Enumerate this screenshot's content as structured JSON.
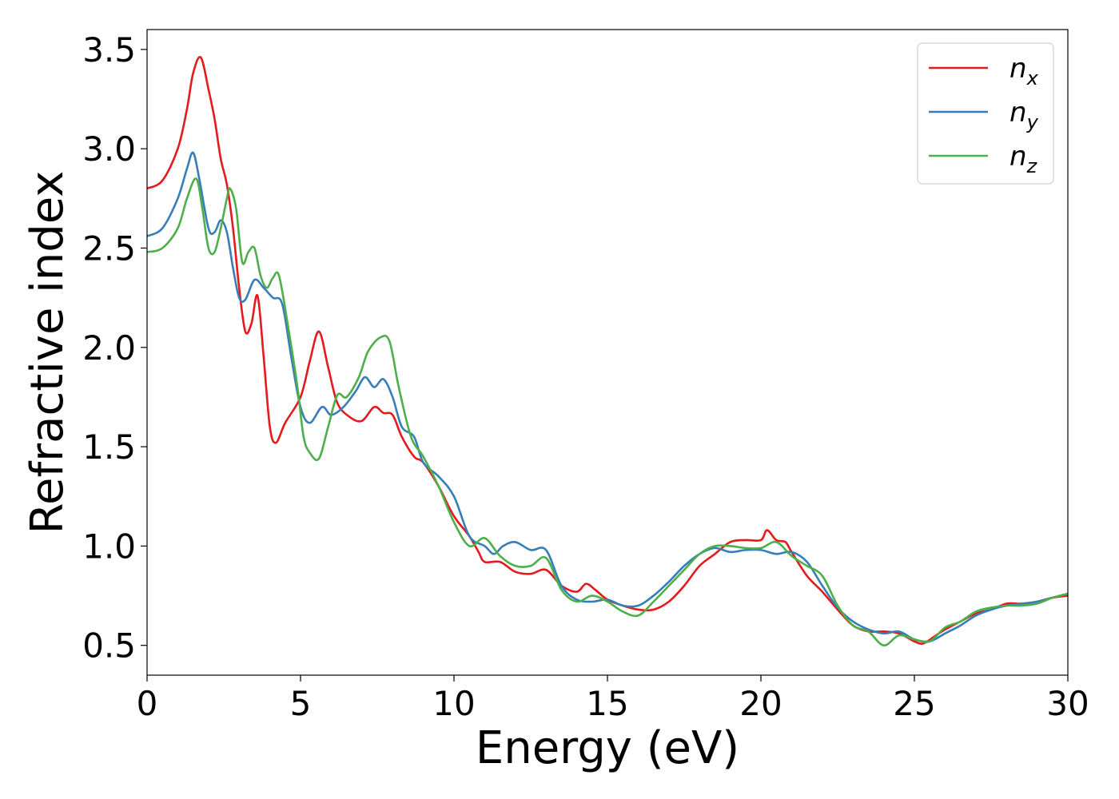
{
  "chart_data": {
    "type": "line",
    "title": "",
    "xlabel": "Energy (eV)",
    "ylabel": "Refractive index",
    "xlim": [
      0,
      30
    ],
    "ylim": [
      0.35,
      3.6
    ],
    "xticks": [
      0,
      5,
      10,
      15,
      20,
      25,
      30
    ],
    "xtick_labels": [
      "0",
      "5",
      "10",
      "15",
      "20",
      "25",
      "30"
    ],
    "yticks": [
      0.5,
      1.0,
      1.5,
      2.0,
      2.5,
      3.0,
      3.5
    ],
    "ytick_labels": [
      "0.5",
      "1.0",
      "1.5",
      "2.0",
      "2.5",
      "3.0",
      "3.5"
    ],
    "grid": false,
    "legend": "top-right",
    "series": [
      {
        "name": "n",
        "subscript": "x",
        "color": "#e41a1c",
        "x": [
          0,
          0.5,
          1.0,
          1.3,
          1.5,
          1.75,
          2.0,
          2.2,
          2.4,
          2.6,
          2.8,
          3.0,
          3.2,
          3.4,
          3.6,
          3.8,
          4.0,
          4.2,
          4.5,
          5.0,
          5.3,
          5.6,
          5.9,
          6.2,
          6.6,
          7.0,
          7.4,
          7.7,
          8.0,
          8.3,
          8.7,
          9.0,
          9.5,
          10.0,
          10.5,
          10.8,
          11.0,
          11.5,
          12.0,
          12.5,
          13.0,
          13.5,
          14.0,
          14.3,
          14.6,
          15.0,
          15.5,
          16.0,
          16.5,
          17.0,
          17.5,
          18.0,
          18.5,
          19.0,
          19.5,
          20.0,
          20.2,
          20.5,
          20.8,
          21.0,
          21.5,
          22.0,
          22.5,
          23.0,
          23.5,
          24.0,
          24.5,
          25.0,
          25.3,
          25.7,
          26.0,
          26.5,
          27.0,
          27.5,
          28.0,
          28.5,
          29.0,
          29.5,
          30.0
        ],
        "y": [
          2.8,
          2.84,
          3.0,
          3.2,
          3.38,
          3.46,
          3.3,
          3.15,
          2.95,
          2.82,
          2.6,
          2.3,
          2.08,
          2.12,
          2.26,
          1.95,
          1.6,
          1.52,
          1.62,
          1.75,
          1.93,
          2.08,
          1.9,
          1.72,
          1.65,
          1.63,
          1.7,
          1.67,
          1.66,
          1.55,
          1.45,
          1.42,
          1.3,
          1.15,
          1.05,
          0.97,
          0.92,
          0.92,
          0.87,
          0.86,
          0.88,
          0.8,
          0.77,
          0.81,
          0.78,
          0.73,
          0.7,
          0.68,
          0.68,
          0.72,
          0.8,
          0.9,
          0.96,
          1.02,
          1.03,
          1.03,
          1.08,
          1.03,
          1.02,
          0.97,
          0.85,
          0.77,
          0.68,
          0.6,
          0.57,
          0.57,
          0.56,
          0.52,
          0.51,
          0.55,
          0.58,
          0.62,
          0.66,
          0.68,
          0.71,
          0.71,
          0.72,
          0.74,
          0.75
        ]
      },
      {
        "name": "n",
        "subscript": "y",
        "color": "#377eb8",
        "x": [
          0,
          0.5,
          1.0,
          1.3,
          1.5,
          1.7,
          2.0,
          2.2,
          2.4,
          2.6,
          2.8,
          3.0,
          3.2,
          3.5,
          3.8,
          4.1,
          4.4,
          4.7,
          5.0,
          5.3,
          5.7,
          6.0,
          6.4,
          6.8,
          7.1,
          7.4,
          7.7,
          8.0,
          8.3,
          8.7,
          9.0,
          9.5,
          10.0,
          10.5,
          11.0,
          11.3,
          11.6,
          12.0,
          12.5,
          13.0,
          13.5,
          14.0,
          14.5,
          15.0,
          15.5,
          16.0,
          16.5,
          17.0,
          17.5,
          18.0,
          18.5,
          19.0,
          19.5,
          20.0,
          20.5,
          21.0,
          21.5,
          22.0,
          22.5,
          23.0,
          23.5,
          24.0,
          24.5,
          25.0,
          25.5,
          26.0,
          26.5,
          27.0,
          27.5,
          28.0,
          28.5,
          29.0,
          29.5,
          30.0
        ],
        "y": [
          2.56,
          2.6,
          2.75,
          2.9,
          2.98,
          2.85,
          2.6,
          2.58,
          2.64,
          2.58,
          2.4,
          2.25,
          2.24,
          2.34,
          2.3,
          2.25,
          2.22,
          1.95,
          1.7,
          1.62,
          1.7,
          1.66,
          1.7,
          1.78,
          1.85,
          1.8,
          1.84,
          1.75,
          1.6,
          1.55,
          1.42,
          1.35,
          1.25,
          1.05,
          1.0,
          0.96,
          1.0,
          1.02,
          0.98,
          0.98,
          0.8,
          0.73,
          0.72,
          0.73,
          0.7,
          0.7,
          0.75,
          0.82,
          0.9,
          0.96,
          0.99,
          0.97,
          0.98,
          0.98,
          0.96,
          0.97,
          0.92,
          0.8,
          0.69,
          0.62,
          0.58,
          0.56,
          0.57,
          0.53,
          0.52,
          0.56,
          0.6,
          0.65,
          0.68,
          0.7,
          0.71,
          0.72,
          0.74,
          0.76
        ]
      },
      {
        "name": "n",
        "subscript": "z",
        "color": "#4daf4a",
        "x": [
          0,
          0.5,
          1.0,
          1.3,
          1.6,
          1.8,
          2.0,
          2.2,
          2.4,
          2.6,
          2.7,
          2.9,
          3.1,
          3.3,
          3.5,
          3.7,
          3.9,
          4.1,
          4.3,
          4.6,
          4.9,
          5.1,
          5.3,
          5.6,
          5.9,
          6.2,
          6.5,
          6.9,
          7.2,
          7.6,
          7.9,
          8.2,
          8.6,
          9.0,
          9.5,
          10.0,
          10.5,
          11.0,
          11.5,
          12.0,
          12.5,
          13.0,
          13.5,
          14.0,
          14.5,
          15.0,
          15.5,
          16.0,
          16.5,
          17.0,
          17.5,
          18.0,
          18.5,
          19.0,
          19.5,
          20.0,
          20.5,
          21.0,
          21.5,
          22.0,
          22.5,
          23.0,
          23.5,
          24.0,
          24.5,
          25.0,
          25.5,
          26.0,
          26.5,
          27.0,
          27.5,
          28.0,
          28.5,
          29.0,
          29.5,
          30.0
        ],
        "y": [
          2.48,
          2.5,
          2.6,
          2.75,
          2.85,
          2.7,
          2.5,
          2.48,
          2.6,
          2.75,
          2.8,
          2.7,
          2.43,
          2.48,
          2.5,
          2.36,
          2.3,
          2.35,
          2.36,
          2.1,
          1.8,
          1.55,
          1.47,
          1.44,
          1.6,
          1.76,
          1.75,
          1.85,
          1.98,
          2.05,
          2.03,
          1.8,
          1.55,
          1.45,
          1.3,
          1.12,
          1.0,
          1.04,
          0.95,
          0.9,
          0.9,
          0.94,
          0.78,
          0.72,
          0.75,
          0.72,
          0.67,
          0.65,
          0.72,
          0.8,
          0.88,
          0.96,
          1.0,
          1.0,
          0.99,
          0.99,
          1.02,
          0.95,
          0.9,
          0.85,
          0.7,
          0.6,
          0.57,
          0.5,
          0.55,
          0.53,
          0.52,
          0.59,
          0.62,
          0.67,
          0.69,
          0.7,
          0.7,
          0.71,
          0.74,
          0.76
        ]
      }
    ]
  }
}
